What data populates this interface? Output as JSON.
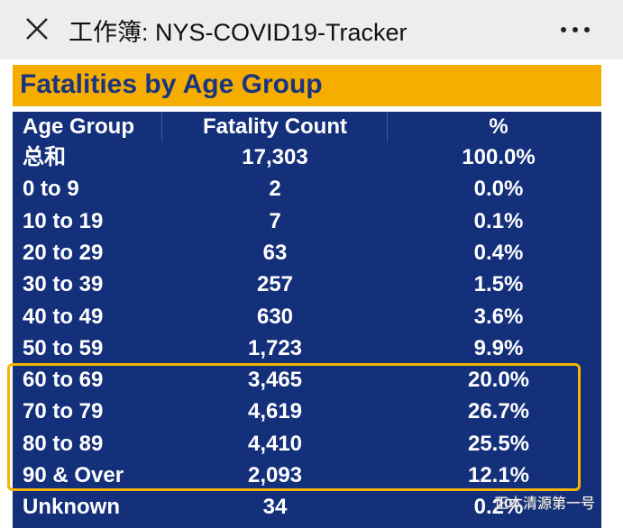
{
  "header": {
    "title": "工作簿: NYS-COVID19-Tracker"
  },
  "banner": {
    "title": "Fatalities by Age Group"
  },
  "table": {
    "columns": [
      "Age Group",
      "Fatality Count",
      "%"
    ],
    "rows": [
      [
        "总和",
        "17,303",
        "100.0%"
      ],
      [
        "0 to 9",
        "2",
        "0.0%"
      ],
      [
        "10 to 19",
        "7",
        "0.1%"
      ],
      [
        "20 to 29",
        "63",
        "0.4%"
      ],
      [
        "30 to 39",
        "257",
        "1.5%"
      ],
      [
        "40 to 49",
        "630",
        "3.6%"
      ],
      [
        "50 to 59",
        "1,723",
        "9.9%"
      ],
      [
        "60 to 69",
        "3,465",
        "20.0%"
      ],
      [
        "70 to 79",
        "4,619",
        "26.7%"
      ],
      [
        "80 to 89",
        "4,410",
        "25.5%"
      ],
      [
        "90 & Over",
        "2,093",
        "12.1%"
      ],
      [
        "Unknown",
        "34",
        "0.2%"
      ]
    ]
  },
  "watermark": "正本清源第一号"
}
